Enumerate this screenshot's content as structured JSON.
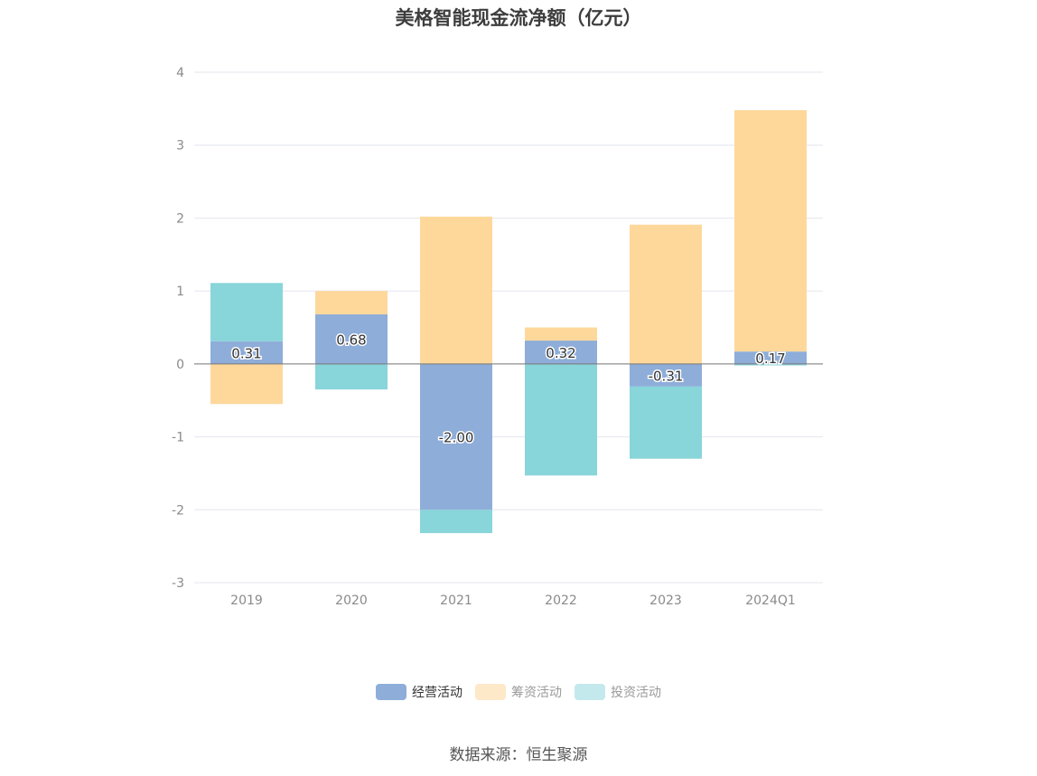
{
  "chart_data": {
    "type": "bar",
    "stacked": true,
    "title": "美格智能现金流净额（亿元）",
    "categories": [
      "2019",
      "2020",
      "2021",
      "2022",
      "2023",
      "2024Q1"
    ],
    "series": [
      {
        "name": "经营活动",
        "color": "#8eadd9",
        "values": [
          0.31,
          0.68,
          -2.0,
          0.32,
          -0.31,
          0.17
        ],
        "labels": [
          "0.31",
          "0.68",
          "-2.00",
          "0.32",
          "-0.31",
          "0.17"
        ]
      },
      {
        "name": "筹资活动",
        "color": "#fed89b",
        "values": [
          -0.55,
          0.32,
          2.02,
          0.18,
          1.91,
          3.31
        ]
      },
      {
        "name": "投资活动",
        "color": "#88d5da",
        "values": [
          0.8,
          -0.35,
          -0.32,
          -1.53,
          -0.99,
          -0.02
        ]
      }
    ],
    "yticks": [
      "4",
      "3",
      "2",
      "1",
      "0",
      "-1",
      "-2",
      "-3"
    ],
    "ylim": [
      -3,
      4
    ],
    "legend": [
      {
        "name": "经营活动",
        "color": "#8eadd9",
        "active": true
      },
      {
        "name": "筹资活动",
        "color": "#fde8c8",
        "active": false
      },
      {
        "name": "投资活动",
        "color": "#c4e9ec",
        "active": false
      }
    ]
  },
  "source": "数据来源：恒生聚源"
}
